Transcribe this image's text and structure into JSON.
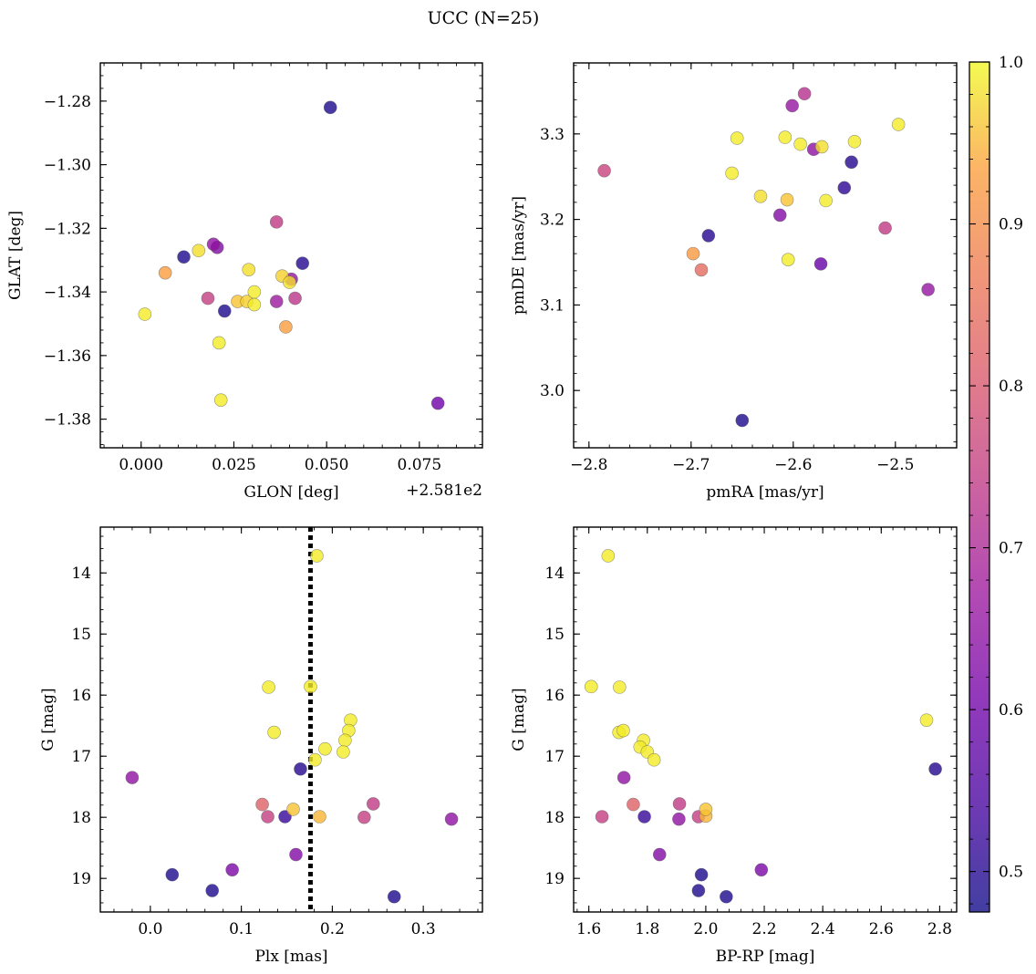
{
  "figure": {
    "title": "UCC (N=25)"
  },
  "colorbar": {
    "min": 0.475,
    "max": 1.0,
    "tick_values": [
      0.5,
      0.6,
      0.7,
      0.8,
      0.9,
      1.0
    ],
    "tick_labels": [
      "0.5",
      "0.6",
      "0.7",
      "0.8",
      "0.9",
      "1.0"
    ],
    "colormap": "plasma"
  },
  "chart_data": [
    {
      "type": "scatter",
      "id": "glon-glat",
      "xlabel": "GLON [deg]",
      "ylabel": "GLAT [deg]",
      "x_offset_label": "+2.581e2",
      "xlim": [
        -0.011,
        0.092
      ],
      "ylim": [
        -1.389,
        -1.268
      ],
      "y_inverted": false,
      "xticks": [
        0.0,
        0.025,
        0.05,
        0.075
      ],
      "xtick_labels": [
        "0.000",
        "0.025",
        "0.050",
        "0.075"
      ],
      "yticks": [
        -1.28,
        -1.3,
        -1.32,
        -1.34,
        -1.36,
        -1.38
      ],
      "ytick_labels": [
        "−1.28",
        "−1.30",
        "−1.32",
        "−1.34",
        "−1.36",
        "−1.38"
      ],
      "points": [
        {
          "x": 0.051,
          "y": -1.282,
          "c": 0.49
        },
        {
          "x": 0.0115,
          "y": -1.329,
          "c": 0.49
        },
        {
          "x": 0.0225,
          "y": -1.346,
          "c": 0.49
        },
        {
          "x": 0.0435,
          "y": -1.331,
          "c": 0.5
        },
        {
          "x": 0.08,
          "y": -1.375,
          "c": 0.6
        },
        {
          "x": 0.0195,
          "y": -1.325,
          "c": 0.65
        },
        {
          "x": 0.0205,
          "y": -1.326,
          "c": 0.63
        },
        {
          "x": 0.0405,
          "y": -1.336,
          "c": 0.66
        },
        {
          "x": 0.0365,
          "y": -1.343,
          "c": 0.67
        },
        {
          "x": 0.0365,
          "y": -1.318,
          "c": 0.74
        },
        {
          "x": 0.018,
          "y": -1.342,
          "c": 0.75
        },
        {
          "x": 0.0415,
          "y": -1.342,
          "c": 0.73
        },
        {
          "x": 0.039,
          "y": -1.351,
          "c": 0.93
        },
        {
          "x": 0.0065,
          "y": -1.334,
          "c": 0.93
        },
        {
          "x": 0.0155,
          "y": -1.327,
          "c": 0.98
        },
        {
          "x": 0.001,
          "y": -1.347,
          "c": 0.99
        },
        {
          "x": 0.021,
          "y": -1.356,
          "c": 0.99
        },
        {
          "x": 0.0215,
          "y": -1.374,
          "c": 0.99
        },
        {
          "x": 0.029,
          "y": -1.333,
          "c": 0.98
        },
        {
          "x": 0.0285,
          "y": -1.343,
          "c": 0.97
        },
        {
          "x": 0.026,
          "y": -1.343,
          "c": 0.96
        },
        {
          "x": 0.0305,
          "y": -1.34,
          "c": 0.99
        },
        {
          "x": 0.0305,
          "y": -1.344,
          "c": 0.99
        },
        {
          "x": 0.038,
          "y": -1.335,
          "c": 0.97
        },
        {
          "x": 0.04,
          "y": -1.337,
          "c": 0.98
        }
      ]
    },
    {
      "type": "scatter",
      "id": "pmra-pmde",
      "xlabel": "pmRA [mas/yr]",
      "ylabel": "pmDE [mas/yr]",
      "xlim": [
        -2.815,
        -2.44
      ],
      "ylim": [
        2.933,
        3.383
      ],
      "y_inverted": false,
      "xticks": [
        -2.8,
        -2.7,
        -2.6,
        -2.5
      ],
      "xtick_labels": [
        "−2.8",
        "−2.7",
        "−2.6",
        "−2.5"
      ],
      "yticks": [
        3.0,
        3.1,
        3.2,
        3.3
      ],
      "ytick_labels": [
        "3.0",
        "3.1",
        "3.2",
        "3.3"
      ],
      "points": [
        {
          "x": -2.785,
          "y": 3.257,
          "c": 0.76
        },
        {
          "x": -2.683,
          "y": 3.181,
          "c": 0.5
        },
        {
          "x": -2.65,
          "y": 2.965,
          "c": 0.49
        },
        {
          "x": -2.698,
          "y": 3.16,
          "c": 0.92
        },
        {
          "x": -2.69,
          "y": 3.141,
          "c": 0.84
        },
        {
          "x": -2.66,
          "y": 3.254,
          "c": 0.99
        },
        {
          "x": -2.655,
          "y": 3.295,
          "c": 0.99
        },
        {
          "x": -2.632,
          "y": 3.227,
          "c": 0.98
        },
        {
          "x": -2.608,
          "y": 3.296,
          "c": 0.99
        },
        {
          "x": -2.606,
          "y": 3.223,
          "c": 0.96
        },
        {
          "x": -2.605,
          "y": 3.153,
          "c": 0.99
        },
        {
          "x": -2.613,
          "y": 3.205,
          "c": 0.63
        },
        {
          "x": -2.601,
          "y": 3.333,
          "c": 0.66
        },
        {
          "x": -2.589,
          "y": 3.347,
          "c": 0.72
        },
        {
          "x": -2.593,
          "y": 3.288,
          "c": 0.99
        },
        {
          "x": -2.58,
          "y": 3.282,
          "c": 0.65
        },
        {
          "x": -2.572,
          "y": 3.285,
          "c": 0.98
        },
        {
          "x": -2.568,
          "y": 3.222,
          "c": 0.99
        },
        {
          "x": -2.573,
          "y": 3.148,
          "c": 0.59
        },
        {
          "x": -2.55,
          "y": 3.237,
          "c": 0.51
        },
        {
          "x": -2.543,
          "y": 3.267,
          "c": 0.5
        },
        {
          "x": -2.54,
          "y": 3.291,
          "c": 0.99
        },
        {
          "x": -2.51,
          "y": 3.19,
          "c": 0.74
        },
        {
          "x": -2.497,
          "y": 3.311,
          "c": 0.99
        },
        {
          "x": -2.468,
          "y": 3.118,
          "c": 0.66
        }
      ]
    },
    {
      "type": "scatter",
      "id": "plx-g",
      "xlabel": "Plx [mas]",
      "ylabel": "G [mag]",
      "xlim": [
        -0.055,
        0.365
      ],
      "ylim": [
        13.25,
        19.55
      ],
      "y_inverted": true,
      "xticks": [
        0.0,
        0.1,
        0.2,
        0.3
      ],
      "xtick_labels": [
        "0.0",
        "0.1",
        "0.2",
        "0.3"
      ],
      "yticks": [
        14,
        15,
        16,
        17,
        18,
        19
      ],
      "ytick_labels": [
        "14",
        "15",
        "16",
        "17",
        "18",
        "19"
      ],
      "vline": {
        "x": 0.176,
        "style": "dotted"
      },
      "points": [
        {
          "x": 0.183,
          "y": 13.72,
          "c": 0.99
        },
        {
          "x": 0.13,
          "y": 15.87,
          "c": 0.99
        },
        {
          "x": 0.176,
          "y": 15.86,
          "c": 0.99
        },
        {
          "x": 0.22,
          "y": 16.41,
          "c": 0.99
        },
        {
          "x": 0.136,
          "y": 16.61,
          "c": 0.99
        },
        {
          "x": 0.218,
          "y": 16.58,
          "c": 0.99
        },
        {
          "x": 0.214,
          "y": 16.74,
          "c": 0.99
        },
        {
          "x": 0.192,
          "y": 16.88,
          "c": 0.99
        },
        {
          "x": 0.212,
          "y": 16.93,
          "c": 0.99
        },
        {
          "x": 0.181,
          "y": 17.06,
          "c": 0.99
        },
        {
          "x": -0.02,
          "y": 17.35,
          "c": 0.65
        },
        {
          "x": 0.165,
          "y": 17.21,
          "c": 0.5
        },
        {
          "x": 0.123,
          "y": 17.79,
          "c": 0.82
        },
        {
          "x": 0.157,
          "y": 17.87,
          "c": 0.96
        },
        {
          "x": 0.245,
          "y": 17.78,
          "c": 0.74
        },
        {
          "x": 0.129,
          "y": 17.99,
          "c": 0.75
        },
        {
          "x": 0.148,
          "y": 17.99,
          "c": 0.52
        },
        {
          "x": 0.186,
          "y": 17.99,
          "c": 0.95
        },
        {
          "x": 0.235,
          "y": 18.0,
          "c": 0.75
        },
        {
          "x": 0.331,
          "y": 18.03,
          "c": 0.65
        },
        {
          "x": 0.16,
          "y": 18.61,
          "c": 0.63
        },
        {
          "x": 0.09,
          "y": 18.86,
          "c": 0.62
        },
        {
          "x": 0.024,
          "y": 18.94,
          "c": 0.49
        },
        {
          "x": 0.068,
          "y": 19.2,
          "c": 0.49
        },
        {
          "x": 0.268,
          "y": 19.3,
          "c": 0.49
        }
      ]
    },
    {
      "type": "scatter",
      "id": "bprp-g",
      "xlabel": "BP-RP [mag]",
      "ylabel": "G [mag]",
      "xlim": [
        1.548,
        2.858
      ],
      "ylim": [
        13.25,
        19.55
      ],
      "y_inverted": true,
      "xticks": [
        1.6,
        1.8,
        2.0,
        2.2,
        2.4,
        2.6,
        2.8
      ],
      "xtick_labels": [
        "1.6",
        "1.8",
        "2.0",
        "2.2",
        "2.4",
        "2.6",
        "2.8"
      ],
      "yticks": [
        14,
        15,
        16,
        17,
        18,
        19
      ],
      "ytick_labels": [
        "14",
        "15",
        "16",
        "17",
        "18",
        "19"
      ],
      "points": [
        {
          "x": 1.666,
          "y": 13.72,
          "c": 0.99
        },
        {
          "x": 1.608,
          "y": 15.86,
          "c": 0.99
        },
        {
          "x": 1.705,
          "y": 15.87,
          "c": 0.99
        },
        {
          "x": 2.755,
          "y": 16.41,
          "c": 0.99
        },
        {
          "x": 1.703,
          "y": 16.61,
          "c": 0.99
        },
        {
          "x": 1.718,
          "y": 16.58,
          "c": 0.99
        },
        {
          "x": 1.787,
          "y": 16.74,
          "c": 0.99
        },
        {
          "x": 1.775,
          "y": 16.85,
          "c": 0.99
        },
        {
          "x": 1.8,
          "y": 16.93,
          "c": 0.99
        },
        {
          "x": 1.823,
          "y": 17.06,
          "c": 0.99
        },
        {
          "x": 1.72,
          "y": 17.35,
          "c": 0.65
        },
        {
          "x": 2.785,
          "y": 17.21,
          "c": 0.5
        },
        {
          "x": 1.752,
          "y": 17.79,
          "c": 0.82
        },
        {
          "x": 1.91,
          "y": 17.78,
          "c": 0.74
        },
        {
          "x": 2.0,
          "y": 17.87,
          "c": 0.96
        },
        {
          "x": 1.645,
          "y": 17.99,
          "c": 0.75
        },
        {
          "x": 1.79,
          "y": 17.99,
          "c": 0.52
        },
        {
          "x": 1.975,
          "y": 17.99,
          "c": 0.75
        },
        {
          "x": 2.0,
          "y": 17.98,
          "c": 0.95
        },
        {
          "x": 1.908,
          "y": 18.03,
          "c": 0.65
        },
        {
          "x": 1.842,
          "y": 18.61,
          "c": 0.63
        },
        {
          "x": 2.19,
          "y": 18.86,
          "c": 0.62
        },
        {
          "x": 1.985,
          "y": 18.94,
          "c": 0.49
        },
        {
          "x": 1.975,
          "y": 19.2,
          "c": 0.49
        },
        {
          "x": 2.07,
          "y": 19.3,
          "c": 0.49
        }
      ]
    }
  ]
}
